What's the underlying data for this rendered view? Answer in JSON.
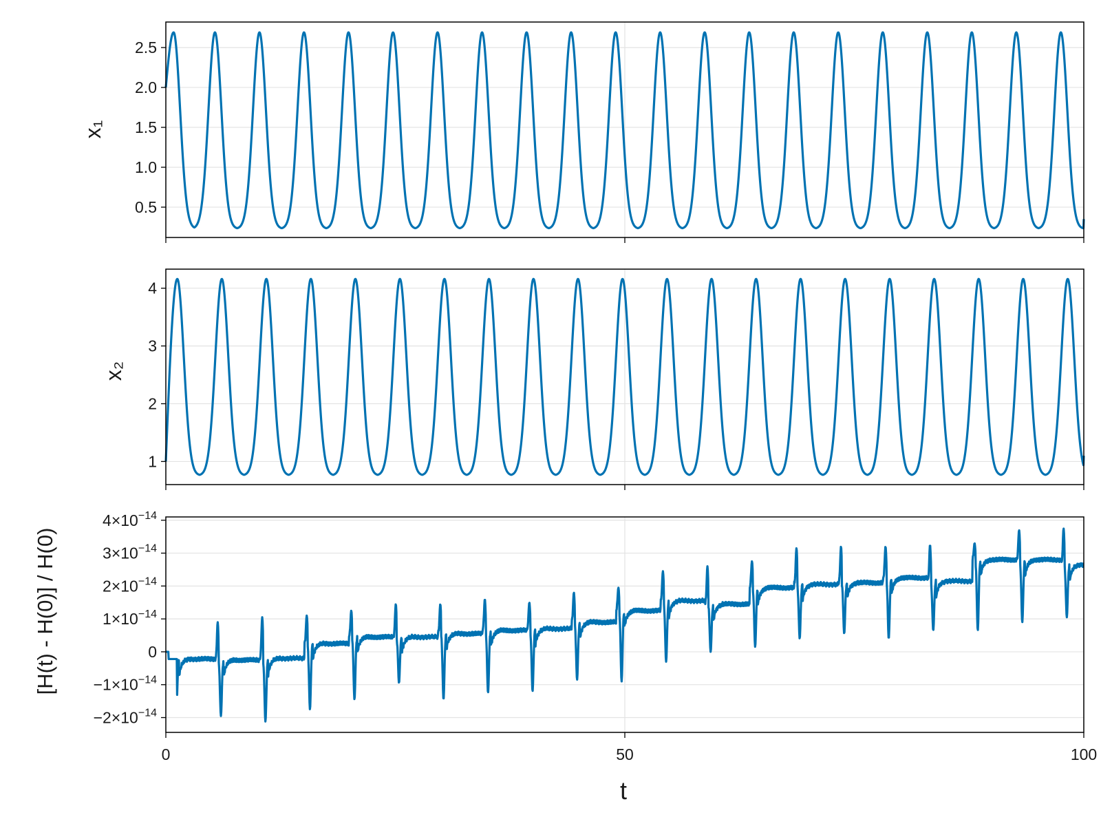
{
  "colors": {
    "series": "#0072b2",
    "grid": "#e3e3e3",
    "frame": "#000000"
  },
  "chart_data": [
    {
      "type": "line",
      "panel": "top",
      "ylabel": "x₁",
      "xlim": [
        0,
        100
      ],
      "ylim": [
        0.12,
        2.82
      ],
      "yticks": [
        0.5,
        1.0,
        1.5,
        2.0,
        2.5
      ],
      "ytick_labels": [
        "0.5",
        "1.0",
        "1.5",
        "2.0",
        "2.5"
      ],
      "xticks": [
        0,
        50,
        100
      ],
      "grid": true,
      "series": [
        {
          "model": "periodic",
          "period": 4.85,
          "min": 0.23,
          "max": 2.69,
          "start": 2.0,
          "peak_times": [
            0.85,
            5.35,
            10.2,
            15.05,
            19.9,
            24.75,
            29.6,
            34.45,
            39.3,
            44.15,
            49.0,
            53.85,
            58.7,
            63.55,
            68.4,
            73.25,
            78.1,
            82.95,
            87.8,
            92.65,
            97.5
          ],
          "end": 0.35
        }
      ]
    },
    {
      "type": "line",
      "panel": "middle",
      "ylabel": "x₂",
      "xlim": [
        0,
        100
      ],
      "ylim": [
        0.6,
        4.33
      ],
      "yticks": [
        1,
        2,
        3,
        4
      ],
      "ytick_labels": [
        "1",
        "2",
        "3",
        "4"
      ],
      "xticks": [
        0,
        50,
        100
      ],
      "grid": true,
      "series": [
        {
          "model": "periodic",
          "period": 4.85,
          "min": 0.76,
          "max": 4.16,
          "start": 1.0,
          "peak_times": [
            1.25,
            6.1,
            10.95,
            15.8,
            20.65,
            25.5,
            30.35,
            35.2,
            40.05,
            44.9,
            49.75,
            54.6,
            59.45,
            64.3,
            69.15,
            74.0,
            78.85,
            83.7,
            88.55,
            93.4,
            98.25
          ],
          "end": 1.1
        }
      ]
    },
    {
      "type": "line",
      "panel": "bottom",
      "ylabel": "[H(t) - H(0)] / H(0)",
      "xlabel": "t",
      "xlim": [
        0,
        100
      ],
      "ylim": [
        -2.45e-14,
        4.1e-14
      ],
      "yticks": [
        -2e-14,
        -1e-14,
        0,
        1e-14,
        2e-14,
        3e-14,
        4e-14
      ],
      "ytick_labels": [
        {
          "mant": "−2×10",
          "exp": "−14"
        },
        {
          "mant": "−1×10",
          "exp": "−14"
        },
        {
          "mant": "0",
          "exp": ""
        },
        {
          "mant": "1×10",
          "exp": "−14"
        },
        {
          "mant": "2×10",
          "exp": "−14"
        },
        {
          "mant": "3×10",
          "exp": "−14"
        },
        {
          "mant": "4×10",
          "exp": "−14"
        }
      ],
      "xticks": [
        0,
        50,
        100
      ],
      "xtick_labels": [
        "0",
        "50",
        "100"
      ],
      "grid": true,
      "series": [
        {
          "model": "drift-with-spikes",
          "spike_times": [
            0.85,
            5.7,
            10.55,
            15.4,
            20.25,
            25.1,
            29.95,
            34.8,
            39.65,
            44.5,
            49.35,
            54.2,
            59.05,
            63.9,
            68.75,
            73.6,
            78.45,
            83.3,
            88.15,
            93.0,
            97.85
          ],
          "baseline": [
            -2.2e-15,
            -2.5e-15,
            -2e-15,
            2.5e-15,
            4.5e-15,
            4.5e-15,
            5.5e-15,
            6.5e-15,
            7e-15,
            9e-15,
            1.25e-14,
            1.55e-14,
            1.45e-14,
            1.95e-14,
            2.05e-14,
            2.1e-14,
            2.25e-14,
            2.15e-14,
            2.8e-14,
            2.8e-14,
            2.65e-14
          ],
          "spike_high": [
            9.5e-15,
            9e-15,
            1.05e-14,
            1.1e-14,
            1.25e-14,
            1.45e-14,
            1.45e-14,
            1.6e-14,
            1.5e-14,
            1.8e-14,
            1.95e-14,
            2.45e-14,
            2.6e-14,
            2.75e-14,
            3.15e-14,
            3.2e-14,
            3.2e-14,
            3.25e-14,
            3.3e-14,
            3.7e-14,
            3.75e-14
          ],
          "spike_low": [
            -1.75e-14,
            -1.95e-14,
            -2.12e-14,
            -1.75e-14,
            -1.45e-14,
            -9.5e-15,
            -1.45e-14,
            -1.25e-14,
            -1.2e-14,
            -8.5e-15,
            -9e-15,
            -3e-15,
            0.0,
            1.5e-15,
            4e-15,
            5.5e-15,
            4e-15,
            6.5e-15,
            6.5e-15,
            9e-15,
            1.05e-14
          ]
        }
      ]
    }
  ]
}
